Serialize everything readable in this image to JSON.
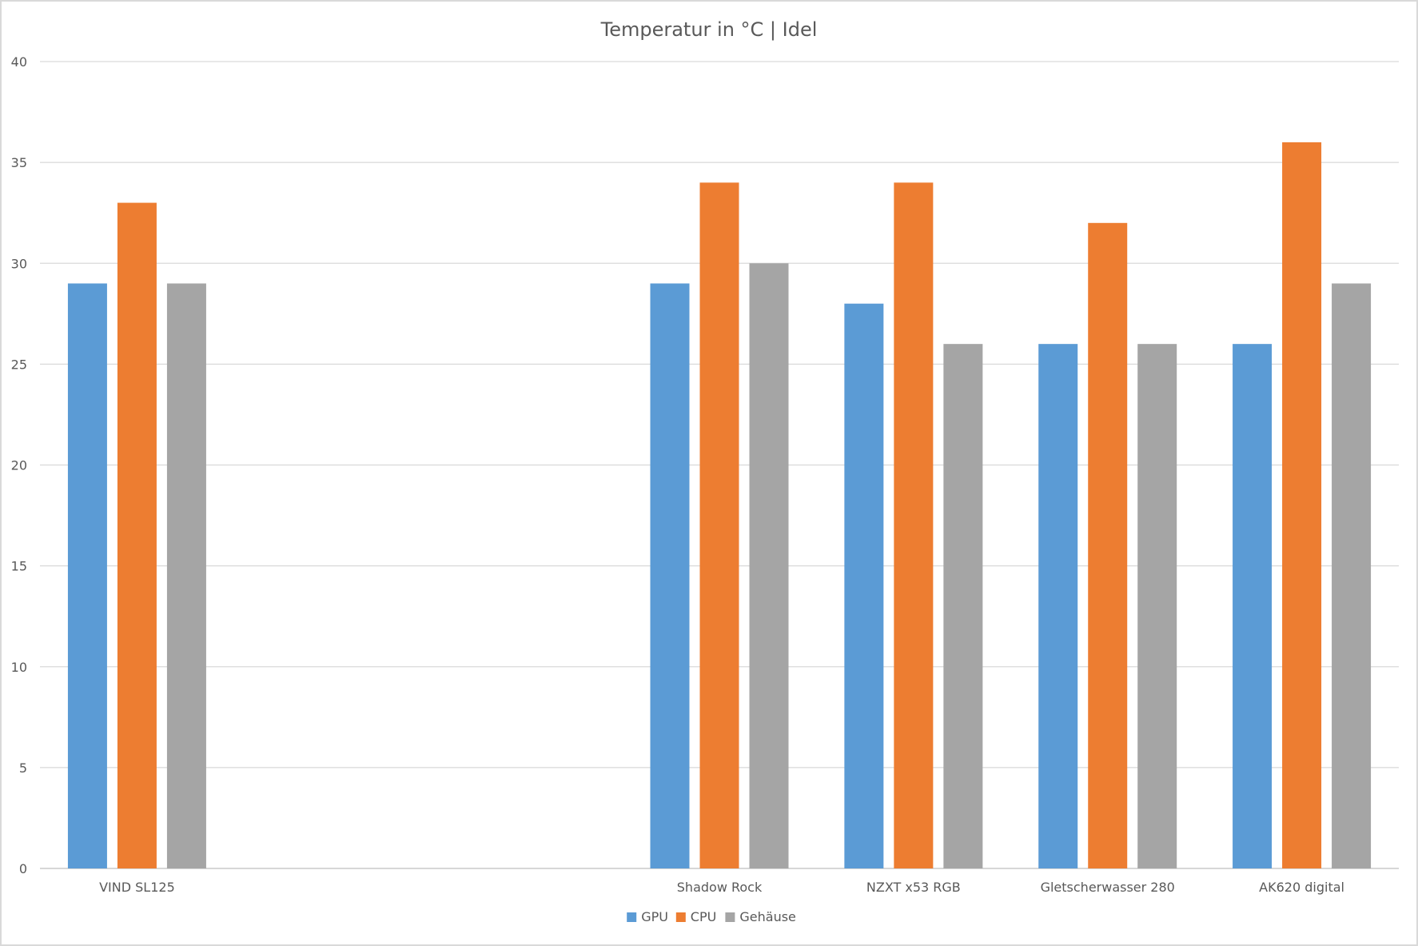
{
  "chart_data": {
    "type": "bar",
    "title": "Temperatur in °C | Idel",
    "xlabel": "",
    "ylabel": "",
    "ylim": [
      0,
      40
    ],
    "yticks": [
      0,
      5,
      10,
      15,
      20,
      25,
      30,
      35,
      40
    ],
    "grid": true,
    "legend_position": "bottom",
    "categories": [
      "VIND SL125",
      "",
      "",
      "Shadow Rock",
      "NZXT x53 RGB",
      "Gletscherwasser 280",
      "AK620 digital"
    ],
    "series": [
      {
        "name": "GPU",
        "color": "#5b9bd5",
        "values": [
          29,
          null,
          null,
          29,
          28,
          26,
          26
        ]
      },
      {
        "name": "CPU",
        "color": "#ed7d31",
        "values": [
          33,
          null,
          null,
          34,
          34,
          32,
          36
        ]
      },
      {
        "name": "Gehäuse",
        "color": "#a5a5a5",
        "values": [
          29,
          null,
          null,
          30,
          26,
          26,
          29
        ]
      }
    ],
    "colors": {
      "grid": "#d9d9d9",
      "text": "#595959",
      "border": "#d9d9d9"
    }
  }
}
